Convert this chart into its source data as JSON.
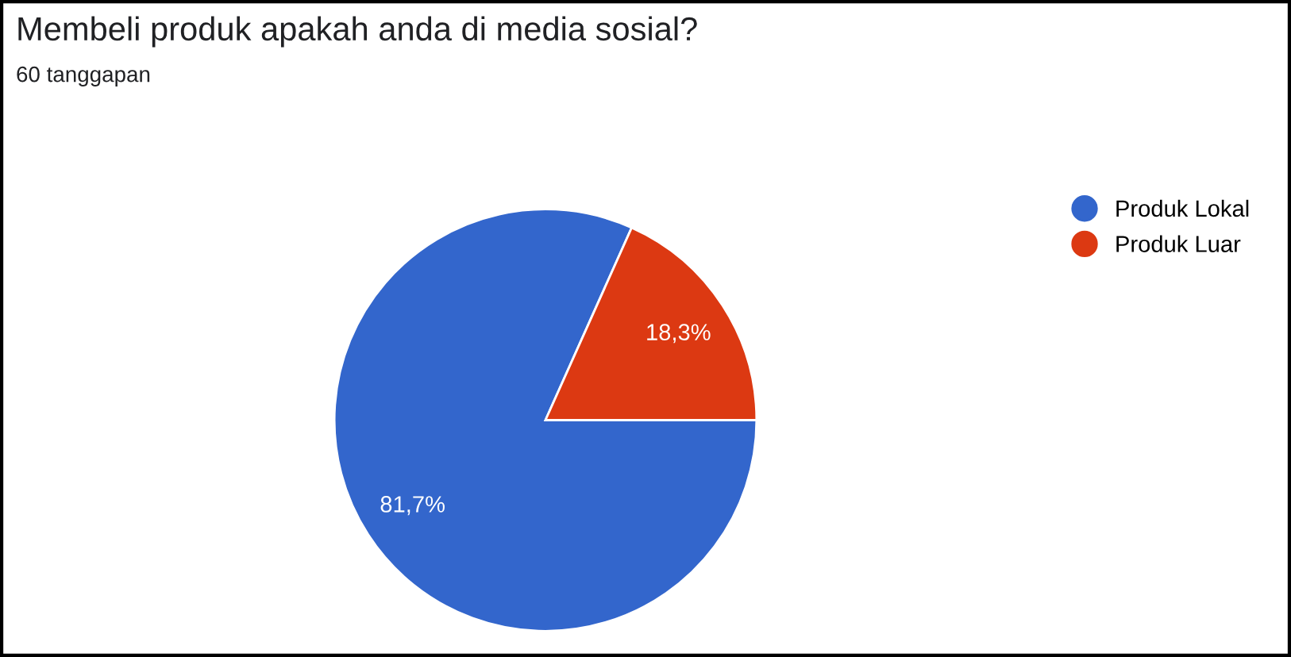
{
  "chart_data": {
    "type": "pie",
    "title": "Membeli produk apakah anda di media sosial?",
    "subtitle": "60 tanggapan",
    "categories": [
      "Produk Lokal",
      "Produk Luar"
    ],
    "values": [
      81.7,
      18.3
    ],
    "value_labels": [
      "81,7%",
      "18,3%"
    ],
    "colors": [
      "#3366cc",
      "#dc3912"
    ],
    "legend": "top right"
  }
}
